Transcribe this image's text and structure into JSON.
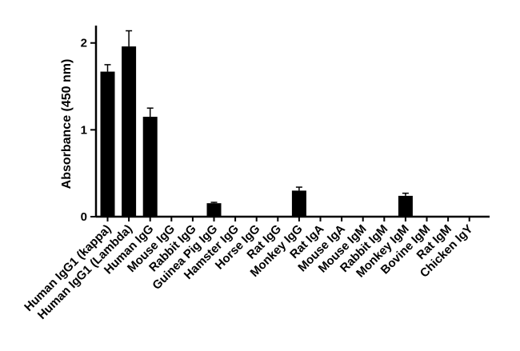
{
  "chart_data": {
    "type": "bar",
    "title": "",
    "xlabel": "",
    "ylabel": "Absorbance (450 nm)",
    "ylim": [
      0,
      2.2
    ],
    "yticks": [
      0,
      1,
      2
    ],
    "grid": false,
    "legend": "none",
    "bar_color": "#000000",
    "categories": [
      "Human IgG1 (kappa)",
      "Human IgG1 (Lambda)",
      "Human IgG",
      "Mouse IgG",
      "Rabbit IgG",
      "Guinea Pig IgG",
      "Hamster IgG",
      "Horse IgG",
      "Rat IgG",
      "Monkey IgG",
      "Rat IgA",
      "Mouse IgA",
      "Mouse IgM",
      "Rabbit IgM",
      "Monkey IgM",
      "Bovine IgM",
      "Rat IgM",
      "Chicken IgY"
    ],
    "values": [
      1.67,
      1.96,
      1.15,
      0.005,
      0.003,
      0.155,
      0.003,
      0.003,
      0.005,
      0.3,
      0.003,
      0.003,
      0.003,
      0.003,
      0.24,
      0.008,
      0.003,
      0.008
    ],
    "errors": [
      0.08,
      0.18,
      0.1,
      0.0,
      0.0,
      0.01,
      0.0,
      0.0,
      0.0,
      0.04,
      0.0,
      0.0,
      0.0,
      0.0,
      0.03,
      0.0,
      0.0,
      0.0
    ]
  }
}
